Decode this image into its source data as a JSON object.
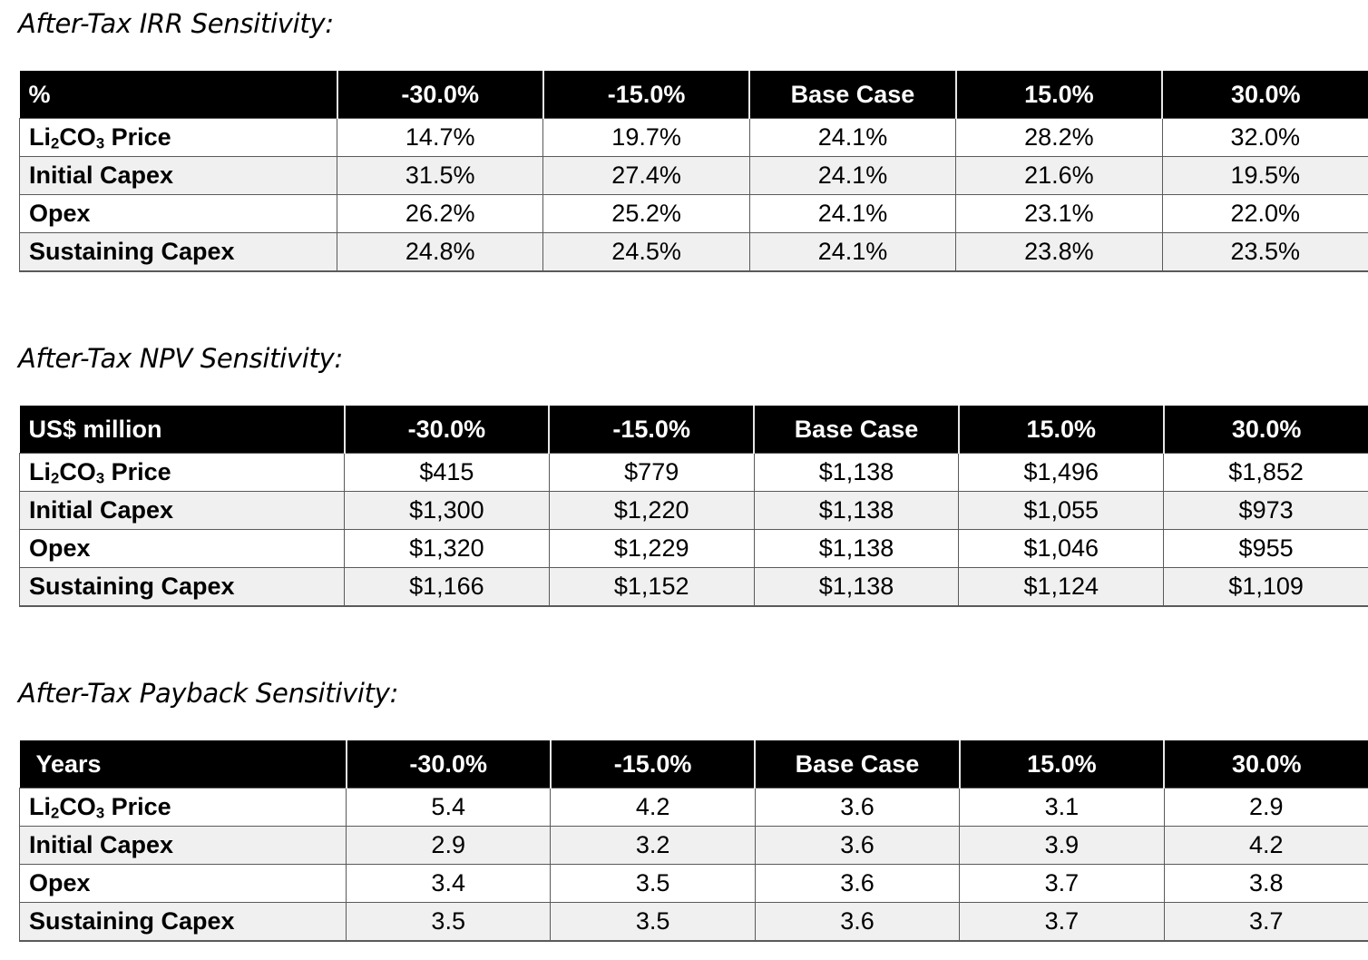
{
  "tables": [
    {
      "title": "After-Tax IRR Sensitivity:",
      "unit": "%",
      "columns": [
        "-30.0%",
        "-15.0%",
        "Base Case",
        "15.0%",
        "30.0%"
      ],
      "rows": [
        {
          "label": "Li2CO3 Price",
          "values": [
            "14.7%",
            "19.7%",
            "24.1%",
            "28.2%",
            "32.0%"
          ]
        },
        {
          "label": "Initial Capex",
          "values": [
            "31.5%",
            "27.4%",
            "24.1%",
            "21.6%",
            "19.5%"
          ]
        },
        {
          "label": "Opex",
          "values": [
            "26.2%",
            "25.2%",
            "24.1%",
            "23.1%",
            "22.0%"
          ]
        },
        {
          "label": "Sustaining Capex",
          "values": [
            "24.8%",
            "24.5%",
            "24.1%",
            "23.8%",
            "23.5%"
          ]
        }
      ]
    },
    {
      "title": "After-Tax NPV Sensitivity:",
      "unit": "US$ million",
      "columns": [
        "-30.0%",
        "-15.0%",
        "Base Case",
        "15.0%",
        "30.0%"
      ],
      "rows": [
        {
          "label": "Li2CO3 Price",
          "values": [
            "$415",
            "$779",
            "$1,138",
            "$1,496",
            "$1,852"
          ]
        },
        {
          "label": "Initial Capex",
          "values": [
            "$1,300",
            "$1,220",
            "$1,138",
            "$1,055",
            "$973"
          ]
        },
        {
          "label": "Opex",
          "values": [
            "$1,320",
            "$1,229",
            "$1,138",
            "$1,046",
            "$955"
          ]
        },
        {
          "label": "Sustaining Capex",
          "values": [
            "$1,166",
            "$1,152",
            "$1,138",
            "$1,124",
            "$1,109"
          ]
        }
      ]
    },
    {
      "title": "After-Tax Payback Sensitivity:",
      "unit": "Years",
      "columns": [
        "-30.0%",
        "-15.0%",
        "Base Case",
        "15.0%",
        "30.0%"
      ],
      "rows": [
        {
          "label": "Li2CO3 Price",
          "values": [
            "5.4",
            "4.2",
            "3.6",
            "3.1",
            "2.9"
          ]
        },
        {
          "label": "Initial Capex",
          "values": [
            "2.9",
            "3.2",
            "3.6",
            "3.9",
            "4.2"
          ]
        },
        {
          "label": "Opex",
          "values": [
            "3.4",
            "3.5",
            "3.6",
            "3.7",
            "3.8"
          ]
        },
        {
          "label": "Sustaining Capex",
          "values": [
            "3.5",
            "3.5",
            "3.6",
            "3.7",
            "3.7"
          ]
        }
      ]
    }
  ]
}
